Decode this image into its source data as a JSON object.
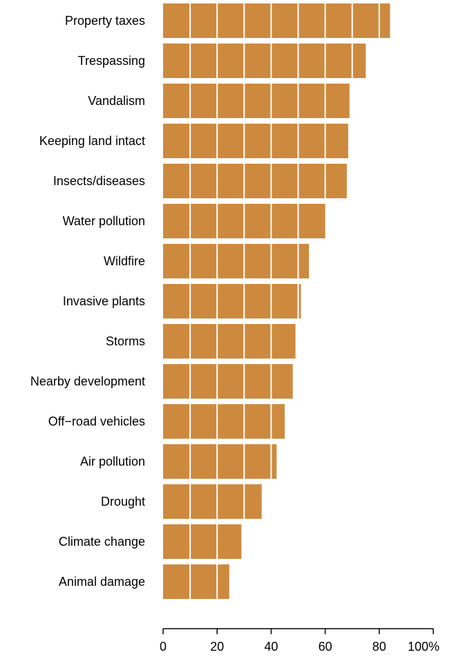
{
  "chart_data": {
    "type": "bar",
    "orientation": "horizontal",
    "categories": [
      "Property taxes",
      "Trespassing",
      "Vandalism",
      "Keeping land intact",
      "Insects/diseases",
      "Water pollution",
      "Wildfire",
      "Invasive plants",
      "Storms",
      "Nearby development",
      "Off−road vehicles",
      "Air pollution",
      "Drought",
      "Climate change",
      "Animal damage"
    ],
    "values": [
      84,
      75,
      69,
      68.5,
      68,
      60,
      54,
      51,
      49,
      48,
      45,
      42,
      36.5,
      29,
      24.5
    ],
    "xlim": [
      0,
      100
    ],
    "x_ticks": [
      0,
      20,
      40,
      60,
      80,
      100
    ],
    "x_tick_labels": [
      "0",
      "20",
      "40",
      "60",
      "80",
      "100%"
    ],
    "segment_divider_step": 10,
    "grid": false,
    "legend": "none",
    "colors": {
      "bar": "#cd8a3f",
      "divider": "#ffffff",
      "axis": "#000000"
    }
  }
}
